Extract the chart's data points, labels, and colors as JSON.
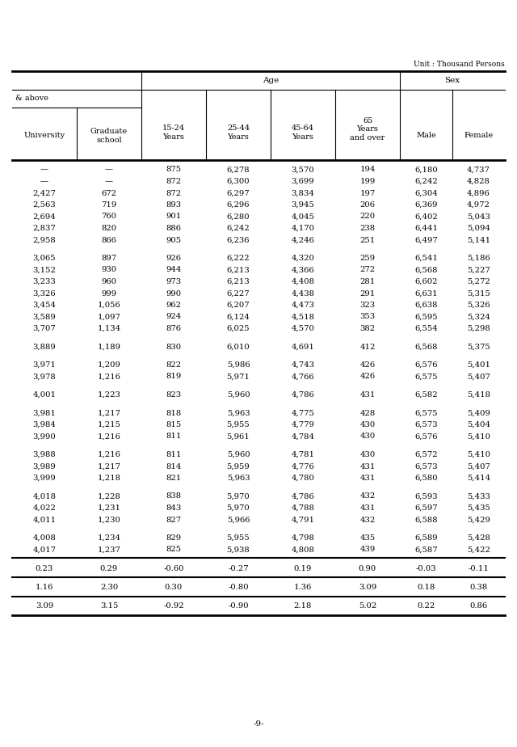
{
  "unit_text": "Unit : Thousand Persons",
  "rows": [
    [
      "—",
      "—",
      "875",
      "6,278",
      "3,570",
      "194",
      "6,180",
      "4,737"
    ],
    [
      "—",
      "—",
      "872",
      "6,300",
      "3,699",
      "199",
      "6,242",
      "4,828"
    ],
    [
      "2,427",
      "672",
      "872",
      "6,297",
      "3,834",
      "197",
      "6,304",
      "4,896"
    ],
    [
      "2,563",
      "719",
      "893",
      "6,296",
      "3,945",
      "206",
      "6,369",
      "4,972"
    ],
    [
      "2,694",
      "760",
      "901",
      "6,280",
      "4,045",
      "220",
      "6,402",
      "5,043"
    ],
    [
      "2,837",
      "820",
      "886",
      "6,242",
      "4,170",
      "238",
      "6,441",
      "5,094"
    ],
    [
      "2,958",
      "866",
      "905",
      "6,236",
      "4,246",
      "251",
      "6,497",
      "5,141"
    ],
    [
      "",
      "",
      "",
      "",
      "",
      "",
      "",
      ""
    ],
    [
      "3,065",
      "897",
      "926",
      "6,222",
      "4,320",
      "259",
      "6,541",
      "5,186"
    ],
    [
      "3,152",
      "930",
      "944",
      "6,213",
      "4,366",
      "272",
      "6,568",
      "5,227"
    ],
    [
      "3,233",
      "960",
      "973",
      "6,213",
      "4,408",
      "281",
      "6,602",
      "5,272"
    ],
    [
      "3,326",
      "999",
      "990",
      "6,227",
      "4,438",
      "291",
      "6,631",
      "5,315"
    ],
    [
      "3,454",
      "1,056",
      "962",
      "6,207",
      "4,473",
      "323",
      "6,638",
      "5,326"
    ],
    [
      "3,589",
      "1,097",
      "924",
      "6,124",
      "4,518",
      "353",
      "6,595",
      "5,324"
    ],
    [
      "3,707",
      "1,134",
      "876",
      "6,025",
      "4,570",
      "382",
      "6,554",
      "5,298"
    ],
    [
      "",
      "",
      "",
      "",
      "",
      "",
      "",
      ""
    ],
    [
      "3,889",
      "1,189",
      "830",
      "6,010",
      "4,691",
      "412",
      "6,568",
      "5,375"
    ],
    [
      "",
      "",
      "",
      "",
      "",
      "",
      "",
      ""
    ],
    [
      "3,971",
      "1,209",
      "822",
      "5,986",
      "4,743",
      "426",
      "6,576",
      "5,401"
    ],
    [
      "3,978",
      "1,216",
      "819",
      "5,971",
      "4,766",
      "426",
      "6,575",
      "5,407"
    ],
    [
      "",
      "",
      "",
      "",
      "",
      "",
      "",
      ""
    ],
    [
      "4,001",
      "1,223",
      "823",
      "5,960",
      "4,786",
      "431",
      "6,582",
      "5,418"
    ],
    [
      "",
      "",
      "",
      "",
      "",
      "",
      "",
      ""
    ],
    [
      "3,981",
      "1,217",
      "818",
      "5,963",
      "4,775",
      "428",
      "6,575",
      "5,409"
    ],
    [
      "3,984",
      "1,215",
      "815",
      "5,955",
      "4,779",
      "430",
      "6,573",
      "5,404"
    ],
    [
      "3,990",
      "1,216",
      "811",
      "5,961",
      "4,784",
      "430",
      "6,576",
      "5,410"
    ],
    [
      "",
      "",
      "",
      "",
      "",
      "",
      "",
      ""
    ],
    [
      "3,988",
      "1,216",
      "811",
      "5,960",
      "4,781",
      "430",
      "6,572",
      "5,410"
    ],
    [
      "3,989",
      "1,217",
      "814",
      "5,959",
      "4,776",
      "431",
      "6,573",
      "5,407"
    ],
    [
      "3,999",
      "1,218",
      "821",
      "5,963",
      "4,780",
      "431",
      "6,580",
      "5,414"
    ],
    [
      "",
      "",
      "",
      "",
      "",
      "",
      "",
      ""
    ],
    [
      "4,018",
      "1,228",
      "838",
      "5,970",
      "4,786",
      "432",
      "6,593",
      "5,433"
    ],
    [
      "4,022",
      "1,231",
      "843",
      "5,970",
      "4,788",
      "431",
      "6,597",
      "5,435"
    ],
    [
      "4,011",
      "1,230",
      "827",
      "5,966",
      "4,791",
      "432",
      "6,588",
      "5,429"
    ],
    [
      "",
      "",
      "",
      "",
      "",
      "",
      "",
      ""
    ],
    [
      "4,008",
      "1,234",
      "829",
      "5,955",
      "4,798",
      "435",
      "6,589",
      "5,428"
    ],
    [
      "4,017",
      "1,237",
      "825",
      "5,938",
      "4,808",
      "439",
      "6,587",
      "5,422"
    ]
  ],
  "footer_rows": [
    [
      "0.23",
      "0.29",
      "-0.60",
      "-0.27",
      "0.19",
      "0.90",
      "-0.03",
      "-0.11"
    ],
    [
      "1.16",
      "2.30",
      "0.30",
      "-0.80",
      "1.36",
      "3.09",
      "0.18",
      "0.38"
    ],
    [
      "3.09",
      "3.15",
      "-0.92",
      "-0.90",
      "2.18",
      "5.02",
      "0.22",
      "0.86"
    ]
  ],
  "page_num": "-9-"
}
